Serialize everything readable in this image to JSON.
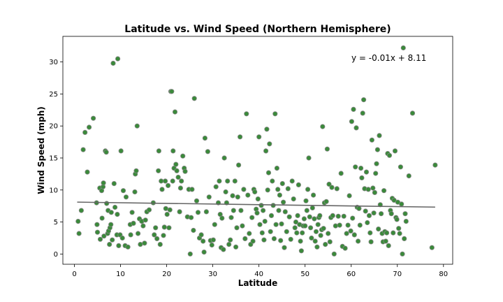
{
  "chart_data": {
    "type": "scatter",
    "title": "Latitude vs. Wind Speed (Northern Hemisphere)",
    "xlabel": "Latitude",
    "ylabel": "Wind Speed (mph)",
    "xlim": [
      -2.5,
      82
    ],
    "ylim": [
      -1.6,
      34
    ],
    "xticks": [
      0,
      10,
      20,
      30,
      40,
      50,
      60,
      70,
      80
    ],
    "yticks": [
      0,
      5,
      10,
      15,
      20,
      25,
      30
    ],
    "grid": false,
    "marker_color": "#3a8a3a",
    "marker_edge_color": "#888888",
    "regression": {
      "equation": "y = -0.01x + 8.11",
      "slope": -0.01,
      "intercept": 8.11,
      "x_range": [
        0.6,
        78.2
      ],
      "color": "#666666"
    },
    "points": [
      [
        0.8,
        5.1
      ],
      [
        1.0,
        3.2
      ],
      [
        1.5,
        6.8
      ],
      [
        1.9,
        16.3
      ],
      [
        2.3,
        19.0
      ],
      [
        2.8,
        12.8
      ],
      [
        3.2,
        19.8
      ],
      [
        4.1,
        21.2
      ],
      [
        4.8,
        8.0
      ],
      [
        4.9,
        4.6
      ],
      [
        5.0,
        3.4
      ],
      [
        5.5,
        10.3
      ],
      [
        5.6,
        2.3
      ],
      [
        5.9,
        9.9
      ],
      [
        6.0,
        5.6
      ],
      [
        6.2,
        10.5
      ],
      [
        6.3,
        11.1
      ],
      [
        6.4,
        2.8
      ],
      [
        6.7,
        16.1
      ],
      [
        6.9,
        15.9
      ],
      [
        7.0,
        7.9
      ],
      [
        7.2,
        3.2
      ],
      [
        7.3,
        6.8
      ],
      [
        7.4,
        3.6
      ],
      [
        7.6,
        1.5
      ],
      [
        7.7,
        4.1
      ],
      [
        7.9,
        4.6
      ],
      [
        8.0,
        6.5
      ],
      [
        8.2,
        2.2
      ],
      [
        8.4,
        29.8
      ],
      [
        8.6,
        11.0
      ],
      [
        8.8,
        7.3
      ],
      [
        9.2,
        3.0
      ],
      [
        9.3,
        6.2
      ],
      [
        9.4,
        30.5
      ],
      [
        9.6,
        1.3
      ],
      [
        9.9,
        3.0
      ],
      [
        10.1,
        16.1
      ],
      [
        10.4,
        2.5
      ],
      [
        10.6,
        9.9
      ],
      [
        11.0,
        1.3
      ],
      [
        11.2,
        8.9
      ],
      [
        11.6,
        1.1
      ],
      [
        12.1,
        4.6
      ],
      [
        12.2,
        3.0
      ],
      [
        12.5,
        6.5
      ],
      [
        12.8,
        4.8
      ],
      [
        13.1,
        9.7
      ],
      [
        13.2,
        12.5
      ],
      [
        13.4,
        13.0
      ],
      [
        13.6,
        20.0
      ],
      [
        13.8,
        3.2
      ],
      [
        14.1,
        5.5
      ],
      [
        14.3,
        1.5
      ],
      [
        14.6,
        5.1
      ],
      [
        14.9,
        4.4
      ],
      [
        15.2,
        1.7
      ],
      [
        15.4,
        5.3
      ],
      [
        15.7,
        6.6
      ],
      [
        16.2,
        6.9
      ],
      [
        17.1,
        8.0
      ],
      [
        17.3,
        3.0
      ],
      [
        17.6,
        4.1
      ],
      [
        17.9,
        2.4
      ],
      [
        18.2,
        13.0
      ],
      [
        18.3,
        16.1
      ],
      [
        18.6,
        1.5
      ],
      [
        18.8,
        11.4
      ],
      [
        19.0,
        10.1
      ],
      [
        19.3,
        2.9
      ],
      [
        19.5,
        4.2
      ],
      [
        19.7,
        11.4
      ],
      [
        19.8,
        7.1
      ],
      [
        20.1,
        6.2
      ],
      [
        20.3,
        10.7
      ],
      [
        20.5,
        4.1
      ],
      [
        20.7,
        6.9
      ],
      [
        20.9,
        25.4
      ],
      [
        21.1,
        25.4
      ],
      [
        21.3,
        11.4
      ],
      [
        21.4,
        16.1
      ],
      [
        21.6,
        13.4
      ],
      [
        21.8,
        22.2
      ],
      [
        22.0,
        14.0
      ],
      [
        22.2,
        13.0
      ],
      [
        22.5,
        12.0
      ],
      [
        22.8,
        6.6
      ],
      [
        23.0,
        10.3
      ],
      [
        23.2,
        11.4
      ],
      [
        23.5,
        15.3
      ],
      [
        23.8,
        13.4
      ],
      [
        24.0,
        12.9
      ],
      [
        24.5,
        5.8
      ],
      [
        24.8,
        10.1
      ],
      [
        25.1,
        0.0
      ],
      [
        25.3,
        5.7
      ],
      [
        25.5,
        10.1
      ],
      [
        25.8,
        3.7
      ],
      [
        26.0,
        24.3
      ],
      [
        26.5,
        8.3
      ],
      [
        26.8,
        6.5
      ],
      [
        27.1,
        2.5
      ],
      [
        27.5,
        3.0
      ],
      [
        27.9,
        2.0
      ],
      [
        28.1,
        0.3
      ],
      [
        28.3,
        18.1
      ],
      [
        28.6,
        6.6
      ],
      [
        28.9,
        16.0
      ],
      [
        29.2,
        8.9
      ],
      [
        29.5,
        2.1
      ],
      [
        29.8,
        1.4
      ],
      [
        30.1,
        2.2
      ],
      [
        30.4,
        4.6
      ],
      [
        30.7,
        10.5
      ],
      [
        31.2,
        8.0
      ],
      [
        31.4,
        11.4
      ],
      [
        31.6,
        6.2
      ],
      [
        31.8,
        1.0
      ],
      [
        32.0,
        5.6
      ],
      [
        32.3,
        0.7
      ],
      [
        32.5,
        15.0
      ],
      [
        32.8,
        9.7
      ],
      [
        33.0,
        8.0
      ],
      [
        33.2,
        11.4
      ],
      [
        33.5,
        1.5
      ],
      [
        33.8,
        2.2
      ],
      [
        34.0,
        5.7
      ],
      [
        34.3,
        9.1
      ],
      [
        34.5,
        6.8
      ],
      [
        34.8,
        11.4
      ],
      [
        35.0,
        1.1
      ],
      [
        35.2,
        4.1
      ],
      [
        35.4,
        8.9
      ],
      [
        35.6,
        13.9
      ],
      [
        35.9,
        18.3
      ],
      [
        36.1,
        6.8
      ],
      [
        36.4,
        4.4
      ],
      [
        36.7,
        10.1
      ],
      [
        37.0,
        2.4
      ],
      [
        37.3,
        21.9
      ],
      [
        37.6,
        9.2
      ],
      [
        37.9,
        3.2
      ],
      [
        38.2,
        1.5
      ],
      [
        38.5,
        5.7
      ],
      [
        38.7,
        2.0
      ],
      [
        38.9,
        10.1
      ],
      [
        39.1,
        9.7
      ],
      [
        39.4,
        7.0
      ],
      [
        39.6,
        6.4
      ],
      [
        39.8,
        8.6
      ],
      [
        40.0,
        18.3
      ],
      [
        40.2,
        4.6
      ],
      [
        40.5,
        7.6
      ],
      [
        40.7,
        3.3
      ],
      [
        40.9,
        6.8
      ],
      [
        41.1,
        2.2
      ],
      [
        41.3,
        5.1
      ],
      [
        41.5,
        16.1
      ],
      [
        41.7,
        19.5
      ],
      [
        41.9,
        10.0
      ],
      [
        42.1,
        12.7
      ],
      [
        42.3,
        17.2
      ],
      [
        42.5,
        3.5
      ],
      [
        42.7,
        6.0
      ],
      [
        42.9,
        11.4
      ],
      [
        43.1,
        7.6
      ],
      [
        43.3,
        2.4
      ],
      [
        43.5,
        21.9
      ],
      [
        43.7,
        4.6
      ],
      [
        43.9,
        13.4
      ],
      [
        44.1,
        10.1
      ],
      [
        44.3,
        6.8
      ],
      [
        44.5,
        9.2
      ],
      [
        44.7,
        2.1
      ],
      [
        44.9,
        4.7
      ],
      [
        45.1,
        11.0
      ],
      [
        45.3,
        8.1
      ],
      [
        45.5,
        1.0
      ],
      [
        45.7,
        6.6
      ],
      [
        46.0,
        3.5
      ],
      [
        46.3,
        10.2
      ],
      [
        46.6,
        5.8
      ],
      [
        46.9,
        2.3
      ],
      [
        47.2,
        11.4
      ],
      [
        47.5,
        8.6
      ],
      [
        47.8,
        4.1
      ],
      [
        48.0,
        5.0
      ],
      [
        48.2,
        3.3
      ],
      [
        48.4,
        6.0
      ],
      [
        48.6,
        10.8
      ],
      [
        48.8,
        4.6
      ],
      [
        49.0,
        2.0
      ],
      [
        49.2,
        0.5
      ],
      [
        49.4,
        3.3
      ],
      [
        49.6,
        4.4
      ],
      [
        49.8,
        5.5
      ],
      [
        50.0,
        4.4
      ],
      [
        50.2,
        8.3
      ],
      [
        50.4,
        6.8
      ],
      [
        50.6,
        10.1
      ],
      [
        50.8,
        15.0
      ],
      [
        51.0,
        5.8
      ],
      [
        51.2,
        4.1
      ],
      [
        51.4,
        2.5
      ],
      [
        51.6,
        7.2
      ],
      [
        51.8,
        9.2
      ],
      [
        52.0,
        5.5
      ],
      [
        52.2,
        2.0
      ],
      [
        52.4,
        3.5
      ],
      [
        52.6,
        1.1
      ],
      [
        52.8,
        4.6
      ],
      [
        53.0,
        5.7
      ],
      [
        53.2,
        6.0
      ],
      [
        53.4,
        2.9
      ],
      [
        53.6,
        3.8
      ],
      [
        53.8,
        19.9
      ],
      [
        54.0,
        4.0
      ],
      [
        54.2,
        8.0
      ],
      [
        54.4,
        1.5
      ],
      [
        54.6,
        8.2
      ],
      [
        54.8,
        16.4
      ],
      [
        55.0,
        3.2
      ],
      [
        55.2,
        10.9
      ],
      [
        55.4,
        1.9
      ],
      [
        55.6,
        5.7
      ],
      [
        55.8,
        10.4
      ],
      [
        56.0,
        6.0
      ],
      [
        56.3,
        0.0
      ],
      [
        56.6,
        4.4
      ],
      [
        56.9,
        10.2
      ],
      [
        57.2,
        5.9
      ],
      [
        57.5,
        4.5
      ],
      [
        57.8,
        12.6
      ],
      [
        58.1,
        1.2
      ],
      [
        58.4,
        5.9
      ],
      [
        58.7,
        0.9
      ],
      [
        59.0,
        3.2
      ],
      [
        59.3,
        4.5
      ],
      [
        59.6,
        9.1
      ],
      [
        59.9,
        3.6
      ],
      [
        60.1,
        20.7
      ],
      [
        60.3,
        5.6
      ],
      [
        60.5,
        22.6
      ],
      [
        60.7,
        3.0
      ],
      [
        60.9,
        13.6
      ],
      [
        61.1,
        19.7
      ],
      [
        61.3,
        7.3
      ],
      [
        61.5,
        2.0
      ],
      [
        61.7,
        7.1
      ],
      [
        61.9,
        4.5
      ],
      [
        62.1,
        13.4
      ],
      [
        62.3,
        11.9
      ],
      [
        62.5,
        22.0
      ],
      [
        62.7,
        24.1
      ],
      [
        62.9,
        10.2
      ],
      [
        63.1,
        6.7
      ],
      [
        63.3,
        12.8
      ],
      [
        63.5,
        4.9
      ],
      [
        63.7,
        10.1
      ],
      [
        63.9,
        6.0
      ],
      [
        64.1,
        3.3
      ],
      [
        64.3,
        1.9
      ],
      [
        64.5,
        17.8
      ],
      [
        64.7,
        10.3
      ],
      [
        64.9,
        6.4
      ],
      [
        65.1,
        9.6
      ],
      [
        65.3,
        12.6
      ],
      [
        65.5,
        14.1
      ],
      [
        65.7,
        16.3
      ],
      [
        65.9,
        3.9
      ],
      [
        66.1,
        18.5
      ],
      [
        66.3,
        7.7
      ],
      [
        66.5,
        6.3
      ],
      [
        66.7,
        3.2
      ],
      [
        66.9,
        1.9
      ],
      [
        67.1,
        9.9
      ],
      [
        67.3,
        3.5
      ],
      [
        67.5,
        2.0
      ],
      [
        67.7,
        3.3
      ],
      [
        67.9,
        15.7
      ],
      [
        68.1,
        1.3
      ],
      [
        68.3,
        15.4
      ],
      [
        68.5,
        6.8
      ],
      [
        68.7,
        6.3
      ],
      [
        68.9,
        8.7
      ],
      [
        69.1,
        3.3
      ],
      [
        69.3,
        8.4
      ],
      [
        69.5,
        16.1
      ],
      [
        69.7,
        5.7
      ],
      [
        69.9,
        5.4
      ],
      [
        70.1,
        8.1
      ],
      [
        70.3,
        4.0
      ],
      [
        70.5,
        3.2
      ],
      [
        70.7,
        13.6
      ],
      [
        70.9,
        7.8
      ],
      [
        71.1,
        0.0
      ],
      [
        71.3,
        32.2
      ],
      [
        71.5,
        2.4
      ],
      [
        71.7,
        6.3
      ],
      [
        71.9,
        5.1
      ],
      [
        72.5,
        12.2
      ],
      [
        73.3,
        22.0
      ],
      [
        77.5,
        1.0
      ],
      [
        78.2,
        13.9
      ]
    ]
  }
}
